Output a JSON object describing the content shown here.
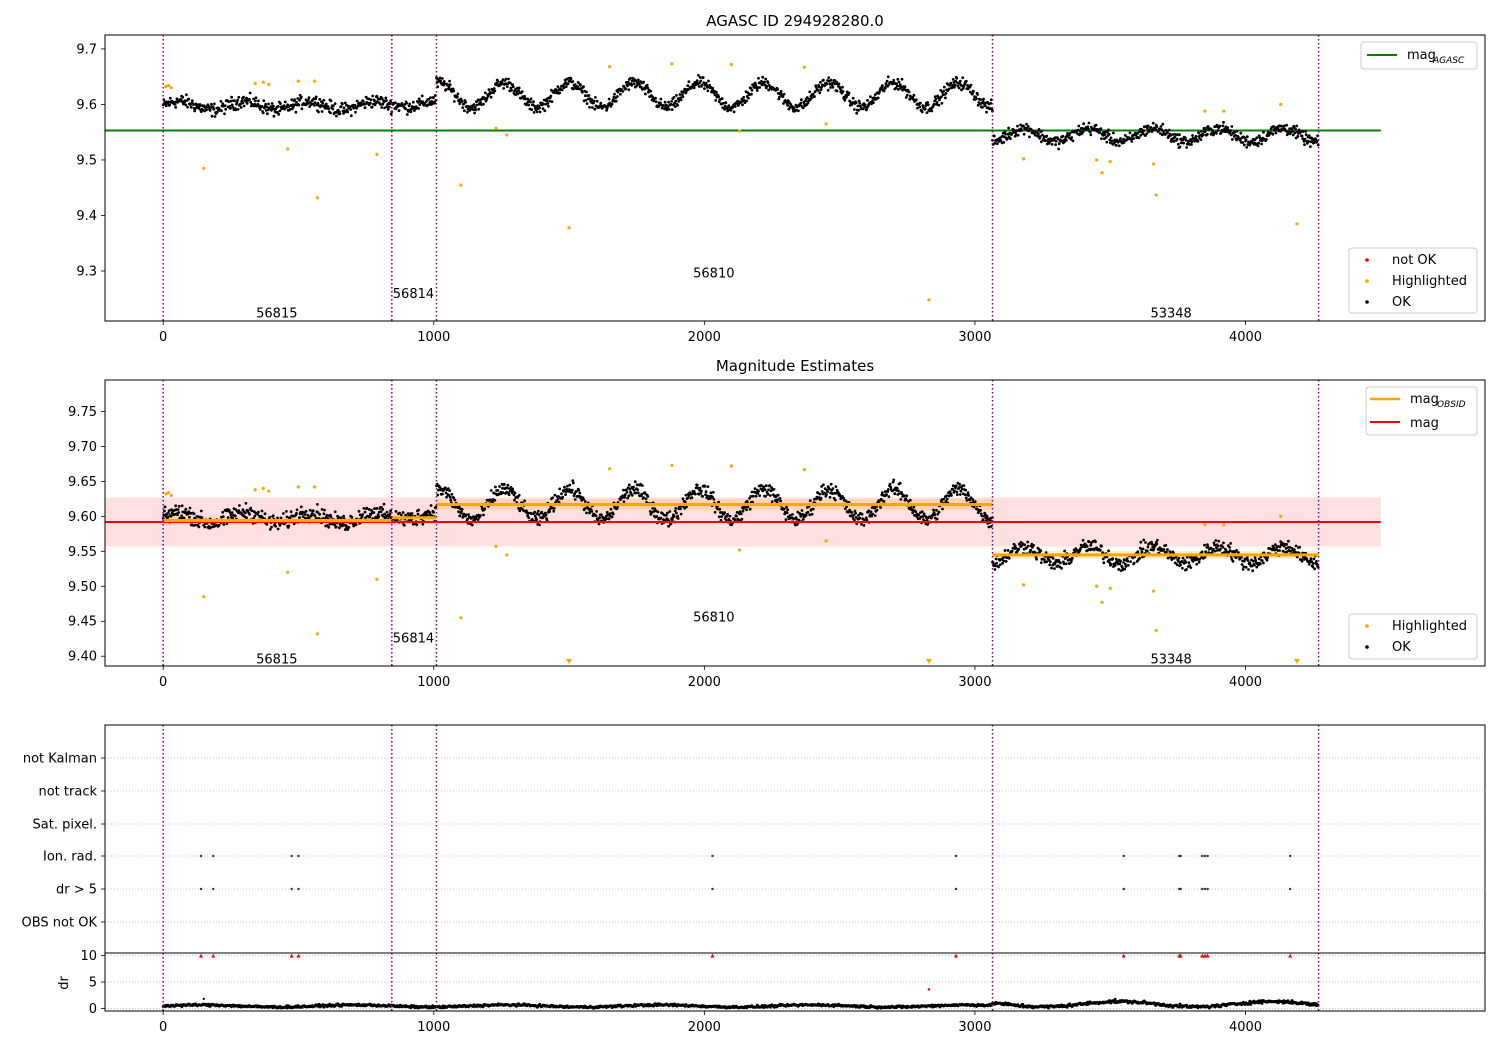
{
  "chart_data": [
    {
      "type": "scatter",
      "title": "AGASC ID 294928280.0",
      "xlim": [
        -215,
        4885
      ],
      "ylim": [
        9.21,
        9.725
      ],
      "xticks": [
        0,
        1000,
        2000,
        3000,
        4000
      ],
      "xtick_labels": [
        "0",
        "1000",
        "2000",
        "3000",
        "4000"
      ],
      "yticks": [
        9.3,
        9.4,
        9.5,
        9.6,
        9.7
      ],
      "ytick_labels": [
        "9.3",
        "9.4",
        "9.5",
        "9.6",
        "9.7"
      ],
      "obsid_boundaries": [
        0,
        845,
        1010,
        3065,
        4270
      ],
      "obsid_labels": [
        {
          "text": "56815",
          "x": 420,
          "y": 9.225
        },
        {
          "text": "56814",
          "x": 925,
          "y": 9.26
        },
        {
          "text": "56810",
          "x": 2035,
          "y": 9.297
        },
        {
          "text": "53348",
          "x": 3725,
          "y": 9.225
        }
      ],
      "reference_lines": [
        {
          "name": "mag",
          "subscript": "AGASC",
          "y": 9.553,
          "x": [
            -215,
            4500
          ],
          "color": "#008000"
        }
      ],
      "legend_upper": [
        {
          "label": "mag",
          "subscript": "AGASC",
          "color": "#008000",
          "marker": "line"
        }
      ],
      "legend_lower": [
        {
          "label": "not OK",
          "color": "#ff0000",
          "marker": "dot"
        },
        {
          "label": "Highlighted",
          "color": "#ffa500",
          "marker": "dot"
        },
        {
          "label": "OK",
          "color": "#000000",
          "marker": "dot"
        }
      ],
      "series": [
        {
          "name": "OK",
          "color": "#000000",
          "segments": [
            {
              "x": [
                0,
                845
              ],
              "mean": 9.598,
              "amp": 0.008,
              "noise": 0.012,
              "step": 2.2
            },
            {
              "x": [
                845,
                1010
              ],
              "mean": 9.602,
              "amp": 0.006,
              "noise": 0.012,
              "step": 2.2
            },
            {
              "x": [
                1010,
                3065
              ],
              "mean": 9.617,
              "amp": 0.022,
              "noise": 0.011,
              "step": 2.2
            },
            {
              "x": [
                3065,
                4270
              ],
              "mean": 9.545,
              "amp": 0.012,
              "noise": 0.011,
              "step": 2.2
            }
          ]
        },
        {
          "name": "Highlighted",
          "color": "#ffa500",
          "points": [
            [
              10,
              9.632
            ],
            [
              20,
              9.634
            ],
            [
              30,
              9.63
            ],
            [
              150,
              9.485
            ],
            [
              340,
              9.638
            ],
            [
              370,
              9.64
            ],
            [
              390,
              9.636
            ],
            [
              460,
              9.52
            ],
            [
              500,
              9.642
            ],
            [
              560,
              9.642
            ],
            [
              570,
              9.432
            ],
            [
              790,
              9.51
            ],
            [
              1100,
              9.455
            ],
            [
              1230,
              9.557
            ],
            [
              1270,
              9.545
            ],
            [
              1500,
              9.378
            ],
            [
              1650,
              9.668
            ],
            [
              1880,
              9.673
            ],
            [
              2100,
              9.672
            ],
            [
              2130,
              9.552
            ],
            [
              2370,
              9.667
            ],
            [
              2450,
              9.565
            ],
            [
              2830,
              9.248
            ],
            [
              3180,
              9.502
            ],
            [
              3450,
              9.5
            ],
            [
              3470,
              9.477
            ],
            [
              3500,
              9.497
            ],
            [
              3660,
              9.493
            ],
            [
              3670,
              9.437
            ],
            [
              3850,
              9.588
            ],
            [
              3920,
              9.588
            ],
            [
              4130,
              9.6
            ],
            [
              4190,
              9.385
            ]
          ]
        }
      ]
    },
    {
      "type": "scatter",
      "title": "Magnitude Estimates",
      "xlim": [
        -215,
        4885
      ],
      "ylim": [
        9.386,
        9.795
      ],
      "xticks": [
        0,
        1000,
        2000,
        3000,
        4000
      ],
      "xtick_labels": [
        "0",
        "1000",
        "2000",
        "3000",
        "4000"
      ],
      "yticks": [
        9.4,
        9.45,
        9.5,
        9.55,
        9.6,
        9.65,
        9.7,
        9.75
      ],
      "ytick_labels": [
        "9.40",
        "9.45",
        "9.50",
        "9.55",
        "9.60",
        "9.65",
        "9.70",
        "9.75"
      ],
      "obsid_boundaries": [
        0,
        845,
        1010,
        3065,
        4270
      ],
      "obsid_labels": [
        {
          "text": "56815",
          "x": 420,
          "y": 9.397
        },
        {
          "text": "56814",
          "x": 925,
          "y": 9.427
        },
        {
          "text": "56810",
          "x": 2035,
          "y": 9.457
        },
        {
          "text": "53348",
          "x": 3725,
          "y": 9.397
        }
      ],
      "mag_band": {
        "x": [
          -215,
          4500
        ],
        "y": [
          9.557,
          9.627
        ],
        "color": "#ff0000"
      },
      "reference_lines": [
        {
          "name": "mag",
          "y": 9.592,
          "x": [
            -215,
            4500
          ],
          "color": "#ff0000"
        }
      ],
      "obsid_mags": {
        "color": "#ffa500",
        "segments": [
          {
            "x": [
              0,
              845
            ],
            "y": 9.594,
            "band": [
              9.588,
              9.6
            ]
          },
          {
            "x": [
              845,
              1010
            ],
            "y": 9.598,
            "band": [
              9.592,
              9.604
            ]
          },
          {
            "x": [
              1010,
              3065
            ],
            "y": 9.617,
            "band": [
              9.609,
              9.625
            ]
          },
          {
            "x": [
              3065,
              4270
            ],
            "y": 9.545,
            "band": [
              9.539,
              9.551
            ]
          }
        ]
      },
      "legend_upper": [
        {
          "label": "mag",
          "subscript": "OBSID",
          "color": "#ffa500",
          "marker": "line"
        },
        {
          "label": "mag",
          "color": "#ff0000",
          "marker": "line"
        }
      ],
      "legend_lower": [
        {
          "label": "Highlighted",
          "color": "#ffa500",
          "marker": "dot"
        },
        {
          "label": "OK",
          "color": "#000000",
          "marker": "dot"
        }
      ],
      "below_range_markers": [
        1500,
        2830,
        4190
      ]
    },
    {
      "type": "scatter",
      "title": "",
      "xlim": [
        -215,
        4885
      ],
      "xticks": [
        0,
        1000,
        2000,
        3000,
        4000
      ],
      "xtick_labels": [
        "0",
        "1000",
        "2000",
        "3000",
        "4000"
      ],
      "obsid_boundaries": [
        0,
        845,
        1010,
        3065,
        4270
      ],
      "flag_rows": [
        "not Kalman",
        "not track",
        "Sat. pixel.",
        "Ion. rad.",
        "dr > 5",
        "OBS not OK"
      ],
      "flag_points": {
        "Ion. rad.": [
          140,
          185,
          475,
          500,
          2030,
          2930,
          3550,
          3755,
          3760,
          3840,
          3850,
          3860,
          4165
        ],
        "dr > 5": [
          140,
          185,
          475,
          500,
          2030,
          2930,
          3550,
          3755,
          3760,
          3840,
          3850,
          3860,
          4165
        ]
      }
    },
    {
      "type": "scatter",
      "title": "",
      "ylabel": "dr",
      "xlim": [
        -215,
        4885
      ],
      "ylim": [
        -0.5,
        10.5
      ],
      "yticks": [
        0,
        5,
        10
      ],
      "ytick_labels": [
        "0",
        "5",
        "10"
      ],
      "xticks": [
        0,
        1000,
        2000,
        3000,
        4000
      ],
      "xtick_labels": [
        "0",
        "1000",
        "2000",
        "3000",
        "4000"
      ],
      "obsid_boundaries": [
        0,
        845,
        1010,
        3065,
        4270
      ],
      "series": [
        {
          "name": "dr",
          "color": "#000000",
          "segments": [
            {
              "x": [
                0,
                3065
              ],
              "mean": 0.45,
              "amp": 0.2,
              "noise": 0.15,
              "step": 3
            },
            {
              "x": [
                3065,
                4270
              ],
              "mean": 0.8,
              "amp": 0.5,
              "noise": 0.2,
              "step": 3
            }
          ]
        },
        {
          "name": "clipped",
          "color": "#ff0000",
          "values_x": [
            140,
            185,
            475,
            500,
            2030,
            2930,
            3550,
            3755,
            3760,
            3840,
            3850,
            3860,
            4165
          ],
          "y": 10
        },
        {
          "name": "outliers",
          "color": "#ff0000",
          "points": [
            [
              2830,
              3.6
            ]
          ]
        },
        {
          "name": "outliers_black",
          "color": "#000000",
          "points": [
            [
              150,
              1.8
            ]
          ]
        }
      ]
    }
  ]
}
